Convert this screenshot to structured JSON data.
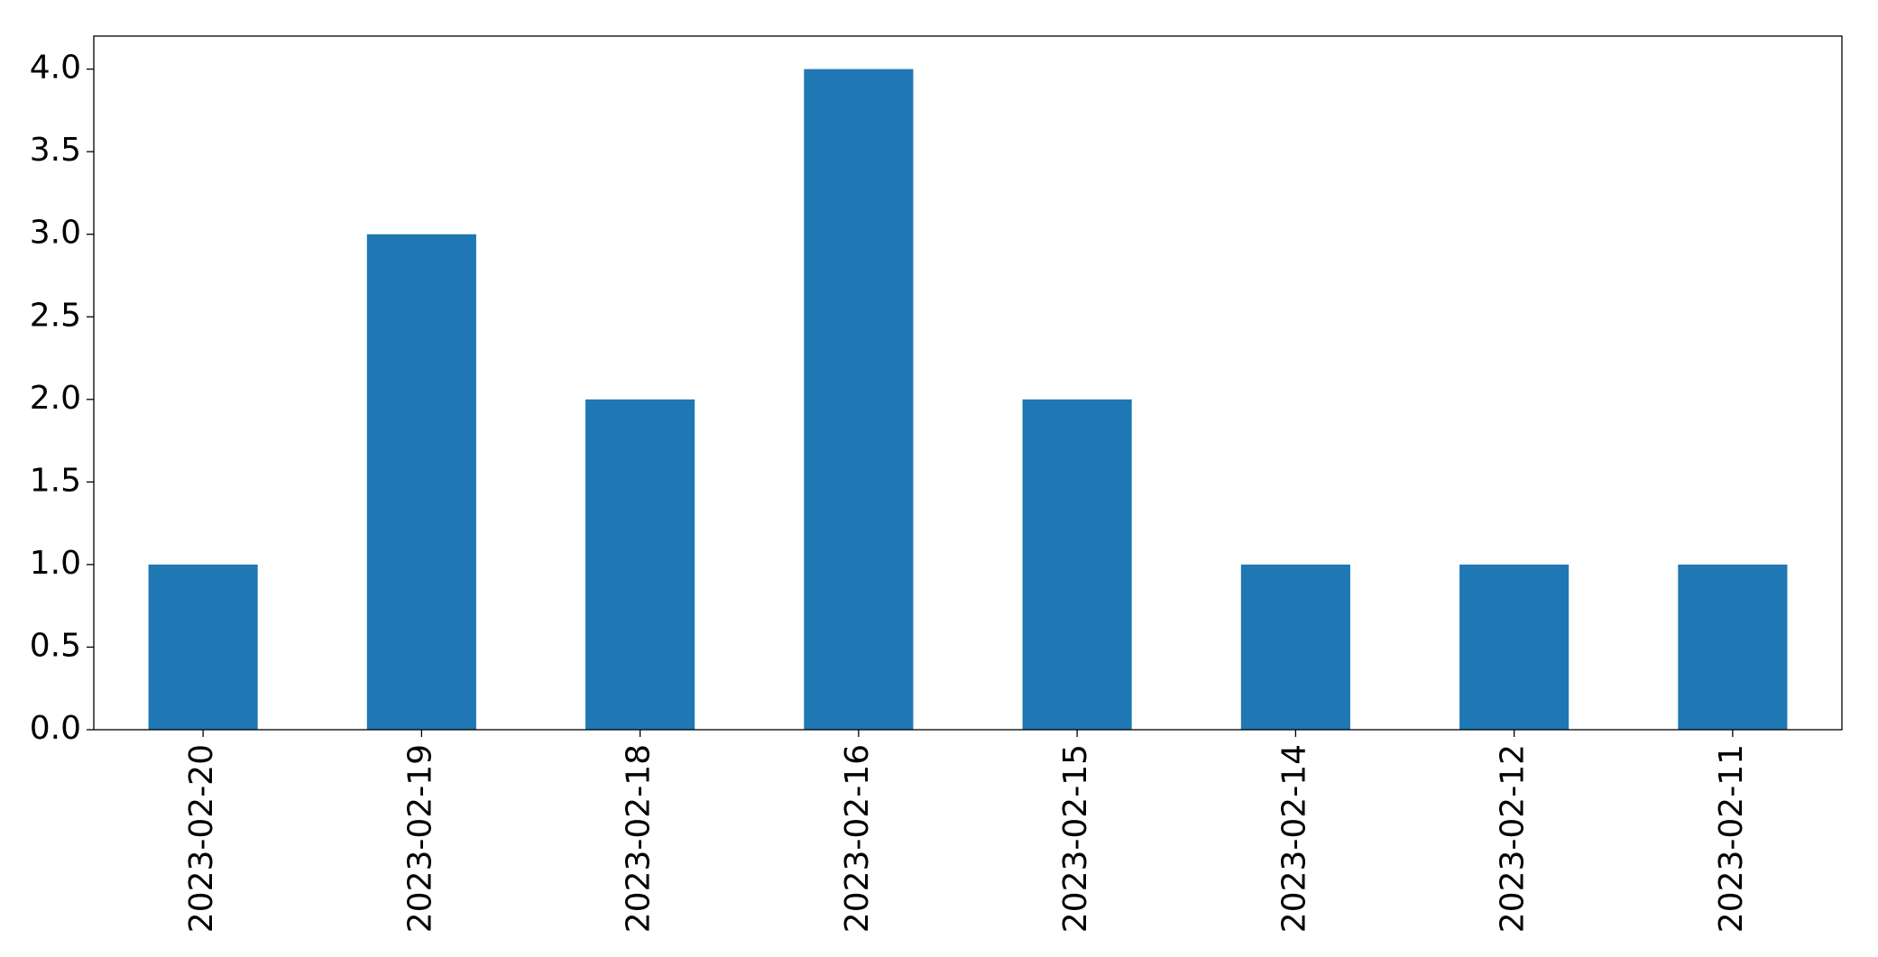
{
  "chart_data": {
    "type": "bar",
    "categories": [
      "2023-02-20",
      "2023-02-19",
      "2023-02-18",
      "2023-02-16",
      "2023-02-15",
      "2023-02-14",
      "2023-02-12",
      "2023-02-11"
    ],
    "values": [
      1,
      3,
      2,
      4,
      2,
      1,
      1,
      1
    ],
    "color": "#1f77b4",
    "ylim": [
      0,
      4.2
    ],
    "yticks": [
      {
        "value": 0,
        "label": "0.0"
      },
      0.5,
      {
        "value": 1,
        "label": "1.0"
      },
      1.5,
      {
        "value": 2,
        "label": "2.0"
      },
      2.5,
      {
        "value": 3,
        "label": "3.0"
      },
      3.5,
      {
        "value": 4,
        "label": "4.0"
      }
    ],
    "grid": false
  }
}
